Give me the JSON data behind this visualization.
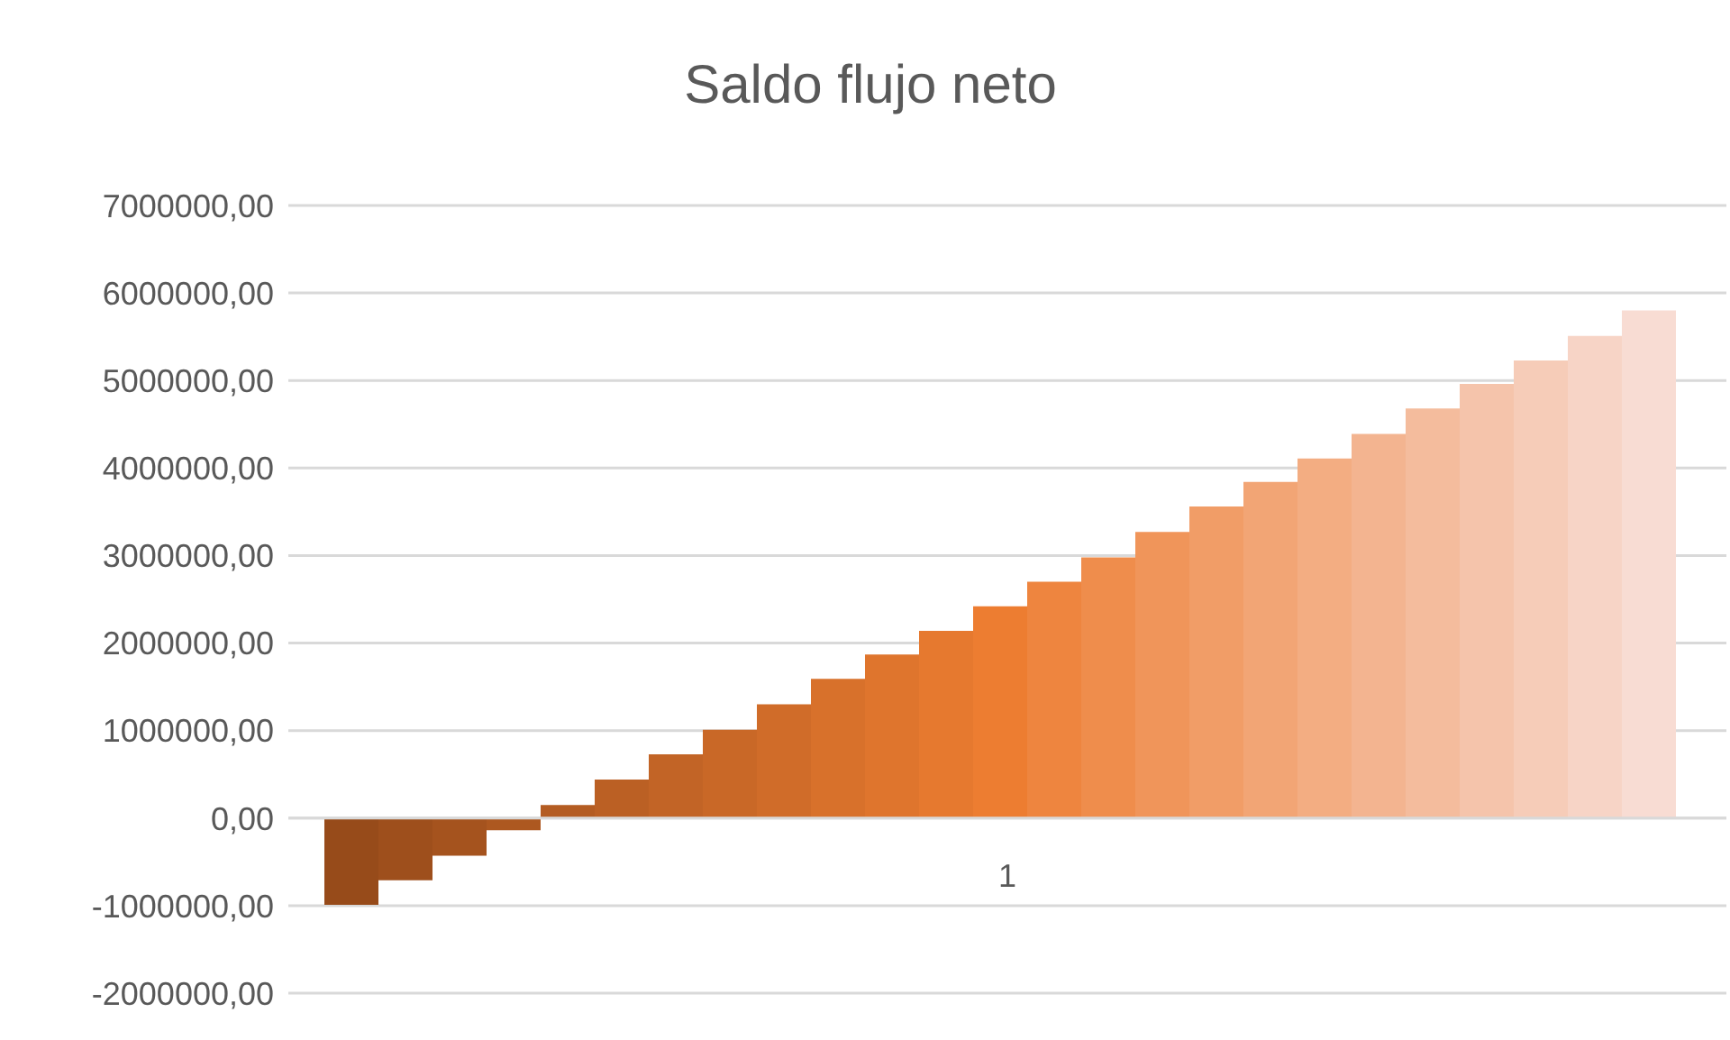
{
  "chart_data": {
    "type": "bar",
    "title": "Saldo flujo neto",
    "categories": [
      "1"
    ],
    "series": [
      {
        "color": "#974b1a",
        "values": [
          -990000
        ]
      },
      {
        "color": "#9e4f1c",
        "values": [
          -710000
        ]
      },
      {
        "color": "#a5531e",
        "values": [
          -430000
        ]
      },
      {
        "color": "#ad5820",
        "values": [
          -140000
        ]
      },
      {
        "color": "#b45c22",
        "values": [
          150000
        ]
      },
      {
        "color": "#bb6024",
        "values": [
          440000
        ]
      },
      {
        "color": "#c26426",
        "values": [
          730000
        ]
      },
      {
        "color": "#c96827",
        "values": [
          1010000
        ]
      },
      {
        "color": "#d06c29",
        "values": [
          1300000
        ]
      },
      {
        "color": "#d8712b",
        "values": [
          1590000
        ]
      },
      {
        "color": "#df752d",
        "values": [
          1870000
        ]
      },
      {
        "color": "#e6792f",
        "values": [
          2140000
        ]
      },
      {
        "color": "#ed7d31",
        "values": [
          2420000
        ]
      },
      {
        "color": "#ee853f",
        "values": [
          2700000
        ]
      },
      {
        "color": "#ef8d4c",
        "values": [
          2980000
        ]
      },
      {
        "color": "#f0955a",
        "values": [
          3270000
        ]
      },
      {
        "color": "#f19d67",
        "values": [
          3560000
        ]
      },
      {
        "color": "#f2a575",
        "values": [
          3840000
        ]
      },
      {
        "color": "#f3ad82",
        "values": [
          4110000
        ]
      },
      {
        "color": "#f3b490",
        "values": [
          4390000
        ]
      },
      {
        "color": "#f4bc9d",
        "values": [
          4680000
        ]
      },
      {
        "color": "#f5c4ab",
        "values": [
          4960000
        ]
      },
      {
        "color": "#f6ccb8",
        "values": [
          5230000
        ]
      },
      {
        "color": "#f7d4c6",
        "values": [
          5510000
        ]
      },
      {
        "color": "#f8dcd3",
        "values": [
          5800000
        ]
      }
    ],
    "ylim": [
      -2000000,
      7000000
    ],
    "yticks": [
      {
        "value": -2000000,
        "label": "-2000000,00"
      },
      {
        "value": -1000000,
        "label": "-1000000,00"
      },
      {
        "value": 0,
        "label": "0,00"
      },
      {
        "value": 1000000,
        "label": "1000000,00"
      },
      {
        "value": 2000000,
        "label": "2000000,00"
      },
      {
        "value": 3000000,
        "label": "3000000,00"
      },
      {
        "value": 4000000,
        "label": "4000000,00"
      },
      {
        "value": 5000000,
        "label": "5000000,00"
      },
      {
        "value": 6000000,
        "label": "6000000,00"
      },
      {
        "value": 7000000,
        "label": "7000000,00"
      }
    ],
    "grid": "y",
    "legend": false
  }
}
